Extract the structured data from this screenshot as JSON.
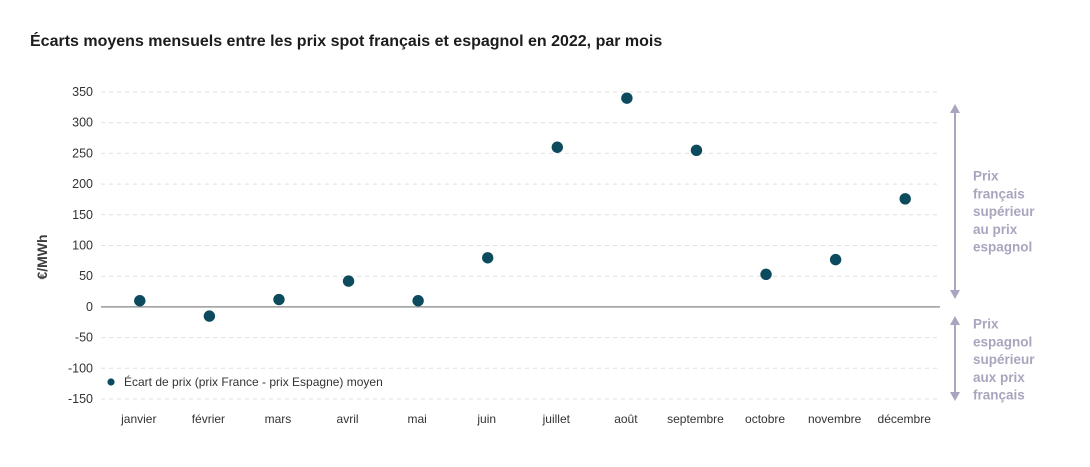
{
  "chart_data": {
    "type": "scatter",
    "title": "Écarts moyens mensuels entre les prix spot français et espagnol en 2022, par mois",
    "ylabel": "€/MWh",
    "categories": [
      "janvier",
      "février",
      "mars",
      "avril",
      "mai",
      "juin",
      "juillet",
      "août",
      "septembre",
      "octobre",
      "novembre",
      "décembre"
    ],
    "series": [
      {
        "name": "Écart de prix (prix France - prix Espagne) moyen",
        "values": [
          10,
          -15,
          12,
          42,
          10,
          80,
          260,
          340,
          255,
          53,
          77,
          176
        ],
        "color": "#0c4a5e"
      }
    ],
    "ylim": [
      -150,
      350
    ],
    "yticks": [
      350,
      300,
      250,
      200,
      150,
      100,
      50,
      0,
      -50,
      -100,
      -150
    ],
    "grid": true,
    "legend": "bottom-left",
    "annotations": [
      {
        "lines": [
          "Prix",
          "français",
          "supérieur",
          "au prix",
          "espagnol"
        ],
        "color": "#a8a6be"
      },
      {
        "lines": [
          "Prix",
          "espagnol",
          "supérieur",
          "aux prix",
          "français"
        ],
        "color": "#a8a6be"
      }
    ]
  }
}
